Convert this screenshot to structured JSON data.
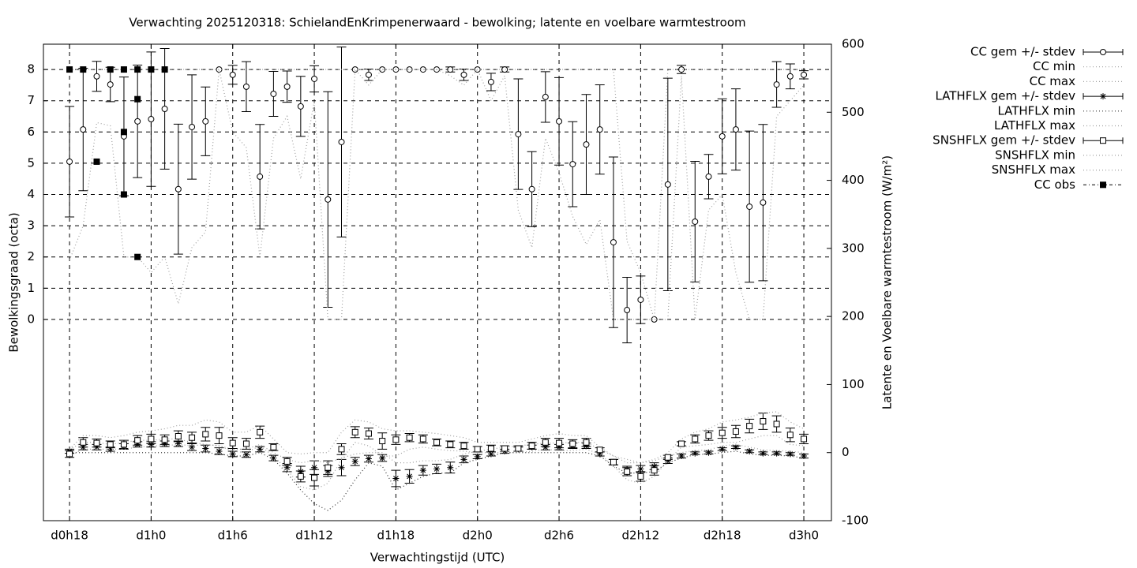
{
  "chart_data": {
    "type": "errorbar",
    "title": "Verwachting 2025120318: SchielandEnKrimpenerwaard - bewolking; latente en voelbare warmtestroom",
    "xlabel": "Verwachtingstijd (UTC)",
    "ylabel": "Bewolkingsgraad (octa)",
    "y2label": "Latente en Voelbare warmtestroom (W/m²)",
    "grid": true,
    "legend": "outside-right",
    "xlim": [
      16.08,
      74.03
    ],
    "xticks": [
      {
        "value": 18,
        "label": "d0h18"
      },
      {
        "value": 24,
        "label": "d1h0"
      },
      {
        "value": 30,
        "label": "d1h6"
      },
      {
        "value": 36,
        "label": "d1h12"
      },
      {
        "value": 42,
        "label": "d1h18"
      },
      {
        "value": 48,
        "label": "d2h0"
      },
      {
        "value": 54,
        "label": "d2h6"
      },
      {
        "value": 60,
        "label": "d2h12"
      },
      {
        "value": 66,
        "label": "d2h18"
      },
      {
        "value": 72,
        "label": "d3h0"
      }
    ],
    "ylim": [
      -6.44,
      8.81
    ],
    "yticks": [
      0,
      1,
      2,
      3,
      4,
      5,
      6,
      7,
      8
    ],
    "y2lim": [
      -100,
      600
    ],
    "y2ticks": [
      -100,
      0,
      100,
      200,
      300,
      400,
      500,
      600
    ],
    "x": [
      18,
      19,
      20,
      21,
      22,
      23,
      24,
      25,
      26,
      27,
      28,
      29,
      30,
      31,
      32,
      33,
      34,
      35,
      36,
      37,
      38,
      39,
      40,
      41,
      42,
      43,
      44,
      45,
      46,
      47,
      48,
      49,
      50,
      51,
      52,
      53,
      54,
      55,
      56,
      57,
      58,
      59,
      60,
      61,
      62,
      63,
      64,
      65,
      66,
      67,
      68,
      69,
      70,
      71,
      72
    ],
    "series": [
      {
        "name": "CC gem +/- stdev",
        "color": "#000000",
        "style": "errorbar",
        "marker": "circle",
        "values": [
          5.05,
          6.08,
          7.78,
          7.52,
          5.86,
          6.34,
          6.41,
          6.74,
          4.17,
          6.16,
          6.34,
          8,
          7.83,
          7.45,
          4.57,
          7.22,
          7.45,
          6.82,
          7.7,
          3.84,
          5.68,
          8,
          7.83,
          8,
          8,
          8,
          8,
          8,
          8,
          7.83,
          8,
          7.6,
          8,
          5.93,
          4.17,
          7.12,
          6.34,
          4.97,
          5.6,
          6.08,
          2.47,
          0.3,
          0.63,
          0,
          4.32,
          8,
          3.13,
          4.57,
          5.86,
          6.08,
          3.61,
          3.74,
          7.52,
          7.78,
          7.83
        ],
        "errors": [
          1.77,
          1.96,
          0.48,
          0.55,
          1.9,
          1.8,
          2.15,
          1.93,
          2.08,
          1.67,
          1.1,
          0,
          0.3,
          0.8,
          1.67,
          0.72,
          0.5,
          0.96,
          0.42,
          3.45,
          3.04,
          0,
          0.18,
          0,
          0,
          0,
          0,
          0,
          0.08,
          0.18,
          0,
          0.28,
          0.08,
          1.77,
          1.2,
          0.81,
          1.4,
          1.36,
          1.6,
          1.43,
          2.73,
          1.05,
          0.76,
          0,
          3.4,
          0.13,
          1.93,
          0.71,
          1.2,
          1.3,
          2.42,
          2.5,
          0.73,
          0.4,
          0.13
        ]
      },
      {
        "name": "CC min",
        "color": "#a0a0a0",
        "style": "dotted",
        "values": [
          1.9,
          3.0,
          6.3,
          6.2,
          2.0,
          2.0,
          1.5,
          2.0,
          0.5,
          2.3,
          2.8,
          8,
          6,
          5.5,
          2.0,
          5.8,
          6.5,
          4.5,
          7,
          0,
          0,
          8,
          7.5,
          8,
          8,
          8,
          8,
          8,
          7.8,
          7.5,
          8,
          7,
          7.8,
          3.5,
          2.3,
          5.8,
          4.7,
          3.3,
          2.4,
          3.2,
          0,
          0,
          0,
          0,
          0,
          7.8,
          0,
          3.5,
          4,
          1.5,
          0,
          0,
          6.5,
          7,
          7.5
        ]
      },
      {
        "name": "CC max",
        "color": "#a0a0a0",
        "style": "dotted",
        "values": [
          8,
          8,
          8,
          8,
          8,
          8,
          8,
          8,
          8,
          8,
          8,
          8,
          8,
          8,
          8,
          8,
          8,
          8,
          8,
          8,
          8,
          8,
          8,
          8,
          8,
          8,
          8,
          8,
          8,
          8,
          8,
          8,
          8,
          8,
          8,
          8,
          8,
          8,
          8,
          8,
          8,
          2.5,
          1.5,
          0,
          8,
          8,
          8,
          8,
          8,
          8,
          8,
          8,
          8,
          8,
          8
        ]
      },
      {
        "name": "LATHFLX gem +/- stdev",
        "color": "#000000",
        "style": "errorbar",
        "marker": "star",
        "axis": "y2",
        "values": [
          2,
          8,
          8,
          5,
          9,
          12,
          12,
          13,
          13,
          8,
          6,
          2,
          -2,
          -3,
          5,
          -8,
          -22,
          -28,
          -22,
          -27,
          -22,
          -13,
          -9,
          -8,
          -38,
          -35,
          -26,
          -24,
          -22,
          -10,
          -6,
          -2,
          2,
          5,
          8,
          8,
          8,
          10,
          10,
          -2,
          -14,
          -25,
          -24,
          -20,
          -12,
          -5,
          -1,
          0,
          5,
          8,
          2,
          -1,
          -1,
          -2,
          -5
        ],
        "errors": [
          3,
          4,
          4,
          3,
          4,
          4,
          4,
          4,
          4,
          5,
          5,
          5,
          4,
          4,
          4,
          4,
          6,
          8,
          10,
          8,
          12,
          6,
          5,
          5,
          12,
          10,
          7,
          7,
          8,
          5,
          3,
          3,
          3,
          3,
          3,
          4,
          4,
          4,
          4,
          3,
          4,
          5,
          5,
          5,
          4,
          3,
          2,
          2,
          2,
          2,
          2,
          2,
          2,
          2,
          3
        ]
      },
      {
        "name": "LATHFLX min",
        "color": "#303030",
        "style": "dotted",
        "axis": "y2",
        "values": [
          0,
          0,
          0,
          0,
          0,
          0,
          0,
          0,
          0,
          0,
          0,
          -2,
          -5,
          -5,
          0,
          -10,
          -30,
          -55,
          -75,
          -85,
          -70,
          -40,
          -15,
          -20,
          -55,
          -45,
          -35,
          -30,
          -30,
          -15,
          -10,
          -5,
          0,
          0,
          0,
          0,
          0,
          0,
          0,
          -5,
          -20,
          -30,
          -30,
          -28,
          -15,
          -8,
          -3,
          -2,
          0,
          2,
          -2,
          -4,
          -4,
          -5,
          -8
        ]
      },
      {
        "name": "LATHFLX max",
        "color": "#a0a0a0",
        "style": "dotted",
        "axis": "y2",
        "values": [
          5,
          15,
          15,
          12,
          15,
          18,
          18,
          20,
          20,
          15,
          12,
          10,
          5,
          5,
          12,
          0,
          -10,
          -15,
          -12,
          -15,
          -8,
          -2,
          0,
          0,
          -15,
          -15,
          -12,
          -12,
          -10,
          -2,
          2,
          5,
          8,
          10,
          12,
          14,
          14,
          15,
          15,
          5,
          -5,
          -15,
          -15,
          -12,
          -5,
          0,
          3,
          4,
          10,
          12,
          8,
          4,
          3,
          2,
          0
        ]
      },
      {
        "name": "SNSHFLX gem +/- stdev",
        "color": "#000000",
        "style": "errorbar",
        "marker": "square",
        "axis": "y2",
        "values": [
          -2,
          15,
          14,
          12,
          12,
          18,
          20,
          19,
          24,
          22,
          27,
          25,
          14,
          13,
          30,
          8,
          -13,
          -35,
          -37,
          -22,
          5,
          30,
          28,
          17,
          19,
          22,
          20,
          15,
          12,
          10,
          5,
          6,
          6,
          6,
          10,
          15,
          14,
          13,
          15,
          4,
          -14,
          -28,
          -35,
          -26,
          -7,
          13,
          20,
          25,
          29,
          31,
          39,
          46,
          42,
          26,
          20
        ],
        "errors": [
          5,
          7,
          6,
          5,
          6,
          7,
          7,
          7,
          8,
          8,
          10,
          12,
          8,
          8,
          9,
          5,
          6,
          8,
          12,
          10,
          8,
          8,
          8,
          12,
          7,
          6,
          6,
          5,
          5,
          5,
          4,
          5,
          4,
          4,
          5,
          6,
          7,
          6,
          6,
          3,
          4,
          6,
          7,
          7,
          3,
          3,
          6,
          7,
          8,
          9,
          10,
          12,
          12,
          10,
          7
        ]
      },
      {
        "name": "SNSHFLX min",
        "color": "#a0a0a0",
        "style": "dotted",
        "axis": "y2",
        "values": [
          -5,
          5,
          5,
          5,
          5,
          8,
          10,
          10,
          12,
          10,
          12,
          10,
          2,
          0,
          10,
          -5,
          -25,
          -50,
          -55,
          -45,
          -10,
          15,
          10,
          -5,
          -5,
          5,
          8,
          5,
          3,
          2,
          0,
          0,
          0,
          0,
          2,
          5,
          3,
          3,
          5,
          -2,
          -20,
          -40,
          -45,
          -35,
          -12,
          8,
          10,
          12,
          15,
          15,
          20,
          25,
          25,
          12,
          10
        ]
      },
      {
        "name": "SNSHFLX max",
        "color": "#a0a0a0",
        "style": "dotted",
        "axis": "y2",
        "values": [
          5,
          25,
          25,
          22,
          25,
          30,
          32,
          35,
          40,
          40,
          48,
          45,
          30,
          30,
          40,
          20,
          0,
          -2,
          0,
          0,
          30,
          48,
          45,
          35,
          32,
          32,
          30,
          28,
          25,
          22,
          15,
          15,
          15,
          15,
          20,
          25,
          28,
          25,
          25,
          8,
          -5,
          -10,
          -15,
          -10,
          0,
          20,
          30,
          35,
          45,
          48,
          52,
          58,
          60,
          45,
          35
        ]
      },
      {
        "name": "CC obs",
        "color": "#000000",
        "style": "points",
        "marker": "filled-square",
        "x": [
          18,
          19,
          20,
          21,
          22,
          22,
          22,
          23,
          23,
          23,
          24,
          25
        ],
        "values": [
          8,
          8,
          5.05,
          8,
          8,
          6,
          4,
          8,
          7.05,
          2,
          8,
          8
        ]
      }
    ]
  }
}
